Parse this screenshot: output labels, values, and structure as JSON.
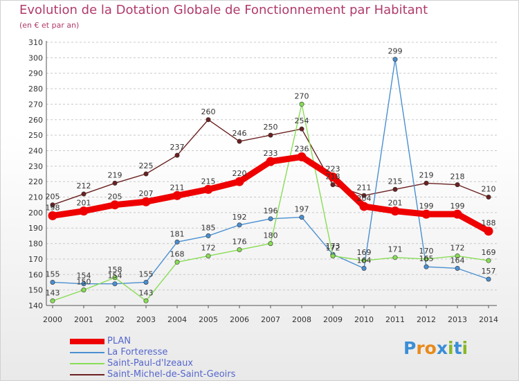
{
  "header": {
    "title": "Evolution de la Dotation Globale de Fonctionnement par Habitant",
    "subtitle": "(en € et par an)"
  },
  "logo": {
    "letters": [
      "P",
      "r",
      "o",
      "x",
      "i",
      "t",
      "i"
    ],
    "colors": [
      "#3a8ed6",
      "#e88a1a",
      "#e88a1a",
      "#3a8ed6",
      "#88b828",
      "#3a8ed6",
      "#88b828"
    ]
  },
  "colors": {
    "title": "#b03a6a",
    "legend_text": "#5566cc",
    "axis": "#555555",
    "grid": "#c8c8c8"
  },
  "chart_data": {
    "type": "line",
    "title": "Evolution de la Dotation Globale de Fonctionnement par Habitant",
    "subtitle": "(en € et par an)",
    "xlabel": "",
    "ylabel": "",
    "x": [
      "2000",
      "2001",
      "2002",
      "2003",
      "2004",
      "2005",
      "2006",
      "2007",
      "2008",
      "2009",
      "2010",
      "2011",
      "2012",
      "2013",
      "2014"
    ],
    "ylim": [
      140,
      310
    ],
    "yticks": [
      140,
      150,
      160,
      170,
      180,
      190,
      200,
      210,
      220,
      230,
      240,
      250,
      260,
      270,
      280,
      290,
      300,
      310
    ],
    "grid": "horizontal dashed",
    "series": [
      {
        "name": "PLAN",
        "color": "#ee0000",
        "values": [
          198,
          201,
          205,
          207,
          211,
          215,
          220,
          233,
          236,
          223,
          204,
          201,
          199,
          199,
          188
        ]
      },
      {
        "name": "La Forteresse",
        "color": "#4a8fd0",
        "values": [
          155,
          154,
          154,
          155,
          181,
          185,
          192,
          196,
          197,
          173,
          164,
          299,
          165,
          164,
          157
        ]
      },
      {
        "name": "Saint-Paul-d'Izeaux",
        "color": "#88dd55",
        "values": [
          143,
          150,
          158,
          143,
          168,
          172,
          176,
          180,
          270,
          172,
          169,
          171,
          170,
          172,
          169
        ]
      },
      {
        "name": "Saint-Michel-de-Saint-Geoirs",
        "color": "#6b2020",
        "values": [
          205,
          212,
          219,
          225,
          237,
          260,
          246,
          250,
          254,
          218,
          211,
          215,
          219,
          218,
          210
        ]
      }
    ],
    "legend_position": "bottom-left"
  }
}
